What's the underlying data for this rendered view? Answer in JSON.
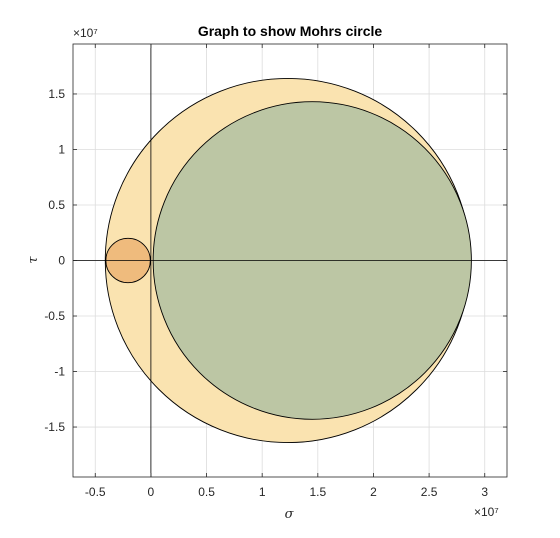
{
  "chart_data": {
    "type": "mohr-circle",
    "title": "Graph to show Mohrs circle",
    "xlabel": "σ",
    "ylabel": "τ",
    "x_exponent": "×10⁷",
    "y_exponent": "×10⁷",
    "scale": 10000000,
    "xlim": [
      -0.7,
      3.2
    ],
    "ylim": [
      -1.95,
      1.95
    ],
    "x_ticks": [
      -0.5,
      0,
      0.5,
      1,
      1.5,
      2,
      2.5,
      3
    ],
    "x_tick_labels": [
      "-0.5",
      "0",
      "0.5",
      "1",
      "1.5",
      "2",
      "2.5",
      "3"
    ],
    "y_ticks": [
      -1.5,
      -1,
      -0.5,
      0,
      0.5,
      1,
      1.5
    ],
    "y_tick_labels": [
      "-1.5",
      "-1",
      "-0.5",
      "0",
      "0.5",
      "1",
      "1.5"
    ],
    "grid": true,
    "circles": [
      {
        "center": [
          1.23,
          0
        ],
        "radius": 1.64,
        "fill": "#FAE3B0",
        "stroke": "#000000"
      },
      {
        "center": [
          1.45,
          0
        ],
        "radius": 1.43,
        "fill": "#BCC6A4",
        "stroke": "#000000"
      },
      {
        "center": [
          -0.205,
          0
        ],
        "radius": 0.2,
        "fill": "#EFBB7D",
        "stroke": "#000000"
      }
    ],
    "reference_lines": {
      "x": 0,
      "y": 0,
      "color": "#000000"
    }
  }
}
